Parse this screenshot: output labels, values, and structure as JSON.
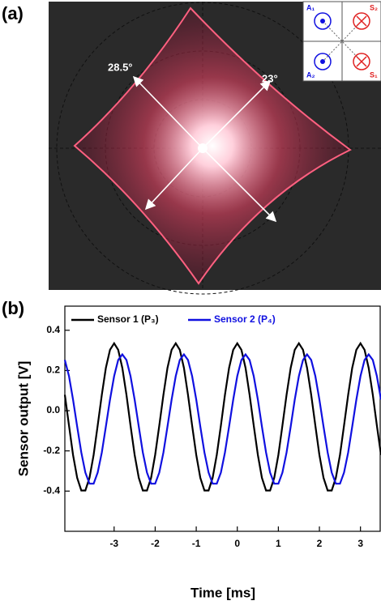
{
  "panel_a": {
    "label": "(a)",
    "angles": [
      "28.5°",
      "23°"
    ],
    "inset": [
      "A₁",
      "S₂",
      "A₂",
      "S₁"
    ]
  },
  "chart_data": {
    "type": "line",
    "panel_label": "(b)",
    "x_label": "Time [ms]",
    "y_label": "Sensor output [V]",
    "x": [
      -4.2,
      -4.1,
      -4,
      -3.9,
      -3.8,
      -3.7,
      -3.6,
      -3.5,
      -3.4,
      -3.3,
      -3.2,
      -3.1,
      -3,
      -2.9,
      -2.8,
      -2.7,
      -2.6,
      -2.5,
      -2.4,
      -2.3,
      -2.2,
      -2.1,
      -2,
      -1.9,
      -1.8,
      -1.7,
      -1.6,
      -1.5,
      -1.4,
      -1.3,
      -1.2,
      -1.1,
      -1,
      -0.9,
      -0.8,
      -0.7,
      -0.6,
      -0.5,
      -0.4,
      -0.3,
      -0.2,
      -0.1,
      0,
      0.1,
      0.2,
      0.3,
      0.4,
      0.5,
      0.6,
      0.7,
      0.8,
      0.9,
      1,
      1.1,
      1.2,
      1.3,
      1.4,
      1.5,
      1.6,
      1.7,
      1.8,
      1.9,
      2,
      2.1,
      2.2,
      2.3,
      2.4,
      2.5,
      2.6,
      2.7,
      2.8,
      2.9,
      3,
      3.1,
      3.2,
      3.3,
      3.4,
      3.5
    ],
    "series": [
      {
        "name": "Sensor 1 (P₃)",
        "color": "#000000",
        "values": [
          0.079,
          -0.074,
          -0.22,
          -0.334,
          -0.397,
          -0.397,
          -0.334,
          -0.22,
          -0.074,
          0.079,
          0.213,
          0.303,
          0.335,
          0.303,
          0.213,
          0.079,
          -0.074,
          -0.22,
          -0.334,
          -0.397,
          -0.397,
          -0.334,
          -0.22,
          -0.074,
          0.079,
          0.213,
          0.303,
          0.335,
          0.303,
          0.213,
          0.079,
          -0.074,
          -0.22,
          -0.334,
          -0.397,
          -0.397,
          -0.334,
          -0.22,
          -0.074,
          0.079,
          0.213,
          0.303,
          0.335,
          0.303,
          0.213,
          0.079,
          -0.074,
          -0.22,
          -0.334,
          -0.397,
          -0.397,
          -0.334,
          -0.22,
          -0.074,
          0.079,
          0.213,
          0.303,
          0.335,
          0.303,
          0.213,
          0.079,
          -0.074,
          -0.22,
          -0.334,
          -0.397,
          -0.397,
          -0.334,
          -0.22,
          -0.074,
          0.079,
          0.213,
          0.303,
          0.335,
          0.303,
          0.213,
          0.079,
          -0.074,
          -0.22
        ]
      },
      {
        "name": "Sensor 2 (P₄)",
        "color": "#1010e0",
        "values": [
          0.252,
          0.172,
          0.055,
          -0.079,
          -0.208,
          -0.308,
          -0.363,
          -0.363,
          -0.308,
          -0.208,
          -0.079,
          0.055,
          0.172,
          0.252,
          0.28,
          0.252,
          0.172,
          0.055,
          -0.079,
          -0.208,
          -0.308,
          -0.363,
          -0.363,
          -0.308,
          -0.208,
          -0.079,
          0.055,
          0.172,
          0.252,
          0.28,
          0.252,
          0.172,
          0.055,
          -0.079,
          -0.208,
          -0.308,
          -0.363,
          -0.363,
          -0.308,
          -0.208,
          -0.079,
          0.055,
          0.172,
          0.252,
          0.28,
          0.252,
          0.172,
          0.055,
          -0.079,
          -0.208,
          -0.308,
          -0.363,
          -0.363,
          -0.308,
          -0.208,
          -0.079,
          0.055,
          0.172,
          0.252,
          0.28,
          0.252,
          0.172,
          0.055,
          -0.079,
          -0.208,
          -0.308,
          -0.363,
          -0.363,
          -0.308,
          -0.208,
          -0.079,
          0.055,
          0.172,
          0.252,
          0.28,
          0.252,
          0.172,
          0.055
        ]
      }
    ],
    "xlim": [
      -4.2,
      3.5
    ],
    "xticks": [
      -3,
      -2,
      -1,
      0,
      1,
      2,
      3
    ],
    "ylim": [
      -0.6,
      0.52
    ],
    "yticks": [
      -0.4,
      -0.2,
      {
        "value": 0,
        "label": "0.0"
      },
      0.2,
      0.4
    ]
  }
}
